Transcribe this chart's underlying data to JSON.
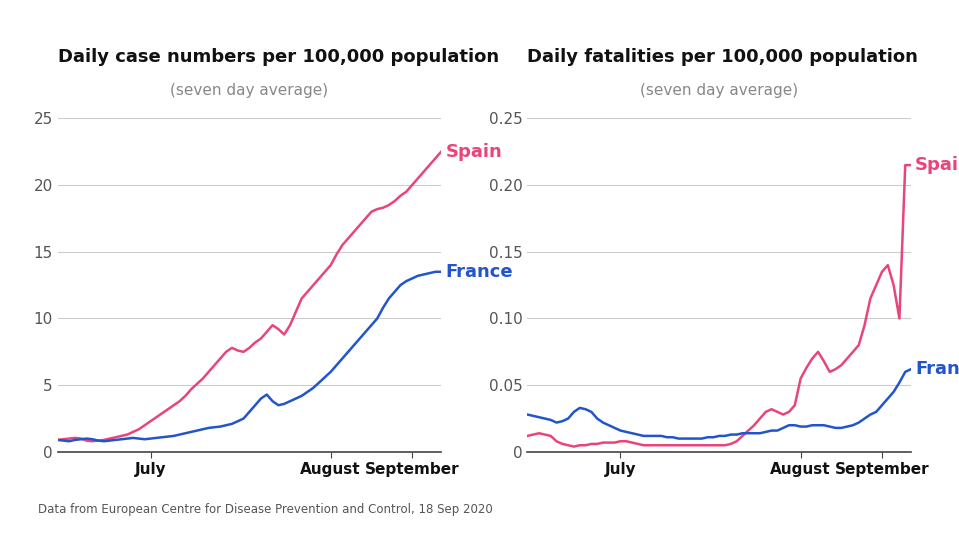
{
  "title1": "Daily case numbers per 100,000 population",
  "subtitle1": "(seven day average)",
  "title2": "Daily fatalities per 100,000 population",
  "subtitle2": "(seven day average)",
  "footnote": "Data from European Centre for Disease Prevention and Control, 18 Sep 2020",
  "spain_color": "#E8457A",
  "france_color": "#2255CC",
  "background_color": "#FFFFFF",
  "cases_spain": [
    0.9,
    0.95,
    1.0,
    1.05,
    1.0,
    0.85,
    0.8,
    0.85,
    0.9,
    1.0,
    1.1,
    1.2,
    1.3,
    1.5,
    1.7,
    2.0,
    2.3,
    2.6,
    2.9,
    3.2,
    3.5,
    3.8,
    4.2,
    4.7,
    5.1,
    5.5,
    6.0,
    6.5,
    7.0,
    7.5,
    7.8,
    7.6,
    7.5,
    7.8,
    8.2,
    8.5,
    9.0,
    9.5,
    9.2,
    8.8,
    9.5,
    10.5,
    11.5,
    12.0,
    12.5,
    13.0,
    13.5,
    14.0,
    14.8,
    15.5,
    16.0,
    16.5,
    17.0,
    17.5,
    18.0,
    18.2,
    18.3,
    18.5,
    18.8,
    19.2,
    19.5,
    20.0,
    20.5,
    21.0,
    21.5,
    22.0,
    22.5
  ],
  "cases_france": [
    0.9,
    0.85,
    0.8,
    0.9,
    0.95,
    1.0,
    0.95,
    0.85,
    0.8,
    0.85,
    0.9,
    0.95,
    1.0,
    1.05,
    1.0,
    0.95,
    1.0,
    1.05,
    1.1,
    1.15,
    1.2,
    1.3,
    1.4,
    1.5,
    1.6,
    1.7,
    1.8,
    1.85,
    1.9,
    2.0,
    2.1,
    2.3,
    2.5,
    3.0,
    3.5,
    4.0,
    4.3,
    3.8,
    3.5,
    3.6,
    3.8,
    4.0,
    4.2,
    4.5,
    4.8,
    5.2,
    5.6,
    6.0,
    6.5,
    7.0,
    7.5,
    8.0,
    8.5,
    9.0,
    9.5,
    10.0,
    10.8,
    11.5,
    12.0,
    12.5,
    12.8,
    13.0,
    13.2,
    13.3,
    13.4,
    13.5,
    13.5
  ],
  "fatalities_spain": [
    0.012,
    0.013,
    0.014,
    0.013,
    0.012,
    0.008,
    0.006,
    0.005,
    0.004,
    0.005,
    0.005,
    0.006,
    0.006,
    0.007,
    0.007,
    0.007,
    0.008,
    0.008,
    0.007,
    0.006,
    0.005,
    0.005,
    0.005,
    0.005,
    0.005,
    0.005,
    0.005,
    0.005,
    0.005,
    0.005,
    0.005,
    0.005,
    0.005,
    0.005,
    0.005,
    0.006,
    0.008,
    0.012,
    0.016,
    0.02,
    0.025,
    0.03,
    0.032,
    0.03,
    0.028,
    0.03,
    0.035,
    0.055,
    0.063,
    0.07,
    0.075,
    0.068,
    0.06,
    0.062,
    0.065,
    0.07,
    0.075,
    0.08,
    0.095,
    0.115,
    0.125,
    0.135,
    0.14,
    0.125,
    0.1,
    0.215,
    0.215
  ],
  "fatalities_france": [
    0.028,
    0.027,
    0.026,
    0.025,
    0.024,
    0.022,
    0.023,
    0.025,
    0.03,
    0.033,
    0.032,
    0.03,
    0.025,
    0.022,
    0.02,
    0.018,
    0.016,
    0.015,
    0.014,
    0.013,
    0.012,
    0.012,
    0.012,
    0.012,
    0.011,
    0.011,
    0.01,
    0.01,
    0.01,
    0.01,
    0.01,
    0.011,
    0.011,
    0.012,
    0.012,
    0.013,
    0.013,
    0.014,
    0.014,
    0.014,
    0.014,
    0.015,
    0.016,
    0.016,
    0.018,
    0.02,
    0.02,
    0.019,
    0.019,
    0.02,
    0.02,
    0.02,
    0.019,
    0.018,
    0.018,
    0.019,
    0.02,
    0.022,
    0.025,
    0.028,
    0.03,
    0.035,
    0.04,
    0.045,
    0.052,
    0.06,
    0.062
  ],
  "cases_ylim": [
    0,
    25
  ],
  "cases_yticks": [
    0,
    5,
    10,
    15,
    20,
    25
  ],
  "fatalities_ylim": [
    0,
    0.25
  ],
  "fatalities_yticks": [
    0,
    0.05,
    0.1,
    0.15,
    0.2,
    0.25
  ],
  "xtick_labels": [
    "July",
    "August",
    "September"
  ],
  "july_idx": 16,
  "aug_idx": 47,
  "sep_idx": 61,
  "n_days": 67,
  "title_fontsize": 13,
  "subtitle_fontsize": 11,
  "tick_fontsize": 11,
  "label_fontsize": 13
}
